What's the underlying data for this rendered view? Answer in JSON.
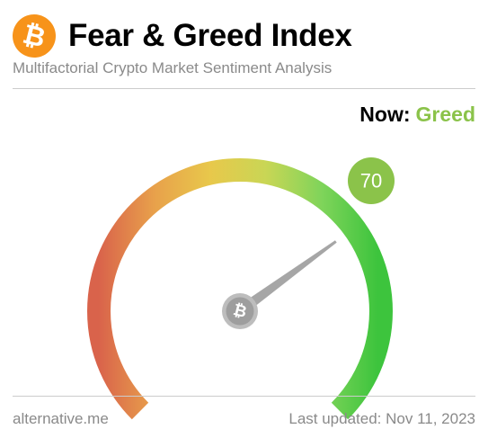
{
  "header": {
    "logo_glyph": "₿",
    "title": "Fear & Greed Index",
    "subtitle": "Multifactorial Crypto Market Sentiment Analysis"
  },
  "status": {
    "now_label": "Now:",
    "classification": "Greed",
    "value": "70",
    "value_color": "#8bc34a"
  },
  "gauge": {
    "min": 0,
    "max": 100,
    "value": 70,
    "hub_glyph": "₿",
    "gradient_colors": [
      "#d9634b",
      "#e8a14b",
      "#e8c84b",
      "#c9d655",
      "#7fd45a",
      "#3dc43d"
    ]
  },
  "footer": {
    "source": "alternative.me",
    "last_updated": "Last updated: Nov 11, 2023"
  }
}
